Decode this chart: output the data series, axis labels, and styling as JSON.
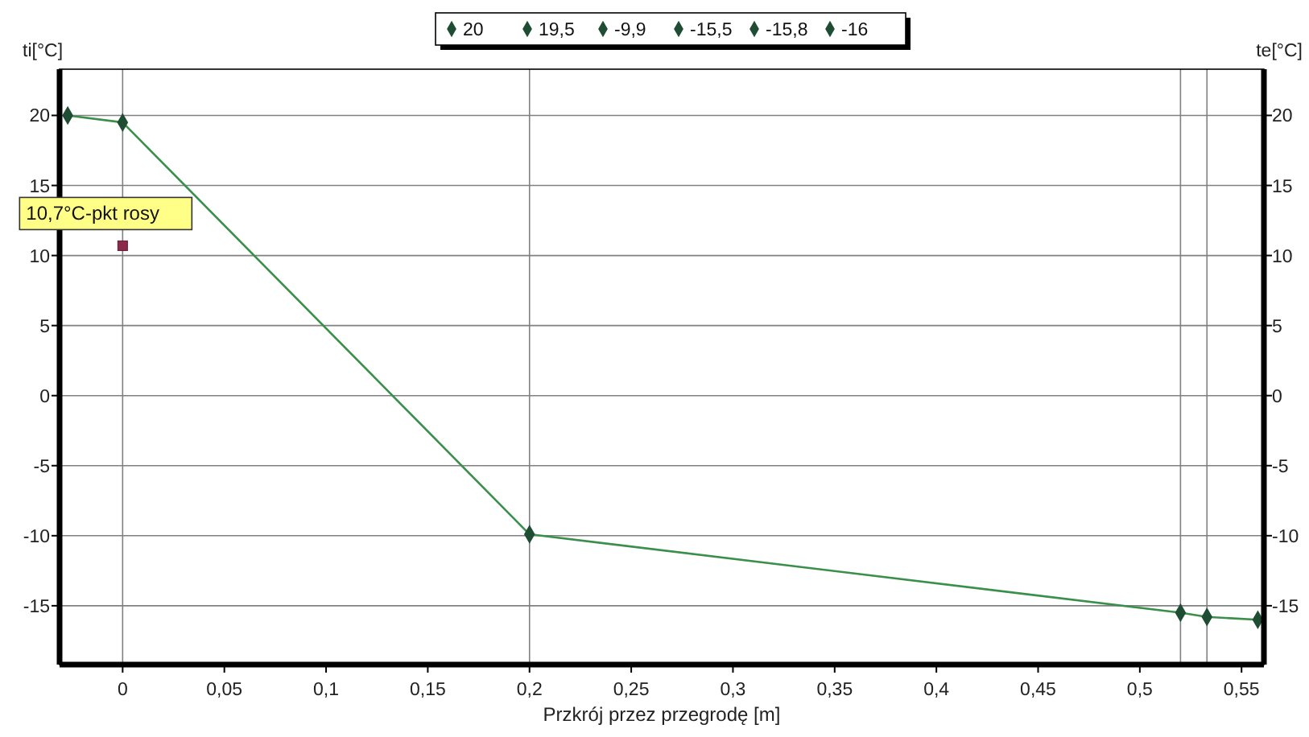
{
  "chart_data": {
    "type": "line",
    "xlabel": "Przkrój przez przegrodę [m]",
    "ylabel": "ti[°C]",
    "y2label": "te[°C]",
    "xlim": [
      -0.031,
      0.561
    ],
    "ylim": [
      -19.2,
      23.3
    ],
    "y2lim": [
      -19.2,
      23.3
    ],
    "xticks": [
      0,
      {
        "value": 0.05,
        "label": "0,05"
      },
      {
        "value": 0.1,
        "label": "0,1"
      },
      {
        "value": 0.15,
        "label": "0,15"
      },
      {
        "value": 0.2,
        "label": "0,2"
      },
      {
        "value": 0.25,
        "label": "0,25"
      },
      {
        "value": 0.3,
        "label": "0,3"
      },
      {
        "value": 0.35,
        "label": "0,35"
      },
      {
        "value": 0.4,
        "label": "0,4"
      },
      {
        "value": 0.45,
        "label": "0,45"
      },
      {
        "value": 0.5,
        "label": "0,5"
      },
      {
        "value": 0.55,
        "label": "0,55"
      }
    ],
    "yticks": [
      -15,
      -10,
      -5,
      0,
      5,
      10,
      15,
      20
    ],
    "y2ticks": [
      -15,
      -10,
      -5,
      0,
      5,
      10,
      15,
      20
    ],
    "grid": "y",
    "legend": "top",
    "line_style": "solid",
    "series": [
      {
        "color": "#3a8f4a",
        "marker": "none",
        "x": [
          -0.027,
          0,
          0.2,
          0.52,
          0.533,
          0.558
        ],
        "values": [
          20,
          19.5,
          -9.9,
          -15.5,
          -15.8,
          -16
        ]
      },
      {
        "type": "scatter",
        "name": "20",
        "color": "#1e4d33",
        "marker": "diamond",
        "x": [
          -0.027
        ],
        "values": [
          20
        ]
      },
      {
        "type": "scatter",
        "name": "19,5",
        "color": "#1e4d33",
        "marker": "diamond",
        "x": [
          0
        ],
        "values": [
          19.5
        ]
      },
      {
        "type": "scatter",
        "name": "-9,9",
        "color": "#1e4d33",
        "marker": "diamond",
        "x": [
          0.2
        ],
        "values": [
          -9.9
        ]
      },
      {
        "type": "scatter",
        "name": "-15,5",
        "color": "#1e4d33",
        "marker": "diamond",
        "x": [
          0.52
        ],
        "values": [
          -15.5
        ]
      },
      {
        "type": "scatter",
        "name": "-15,8",
        "color": "#1e4d33",
        "marker": "diamond",
        "x": [
          0.533
        ],
        "values": [
          -15.8
        ]
      },
      {
        "type": "scatter",
        "name": "-16",
        "color": "#1e4d33",
        "marker": "diamond",
        "x": [
          0.558
        ],
        "values": [
          -16
        ]
      }
    ],
    "ref_lines": [
      {
        "axis": "x",
        "value": 0,
        "color": "#808080"
      },
      {
        "axis": "x",
        "value": 0.2,
        "color": "#808080"
      },
      {
        "axis": "x",
        "value": 0.52,
        "color": "#808080"
      },
      {
        "axis": "x",
        "value": 0.533,
        "color": "#808080"
      }
    ],
    "annotations": [
      {
        "text": "10,7°C-pkt rosy",
        "x": 0,
        "y": 10.7
      }
    ]
  }
}
